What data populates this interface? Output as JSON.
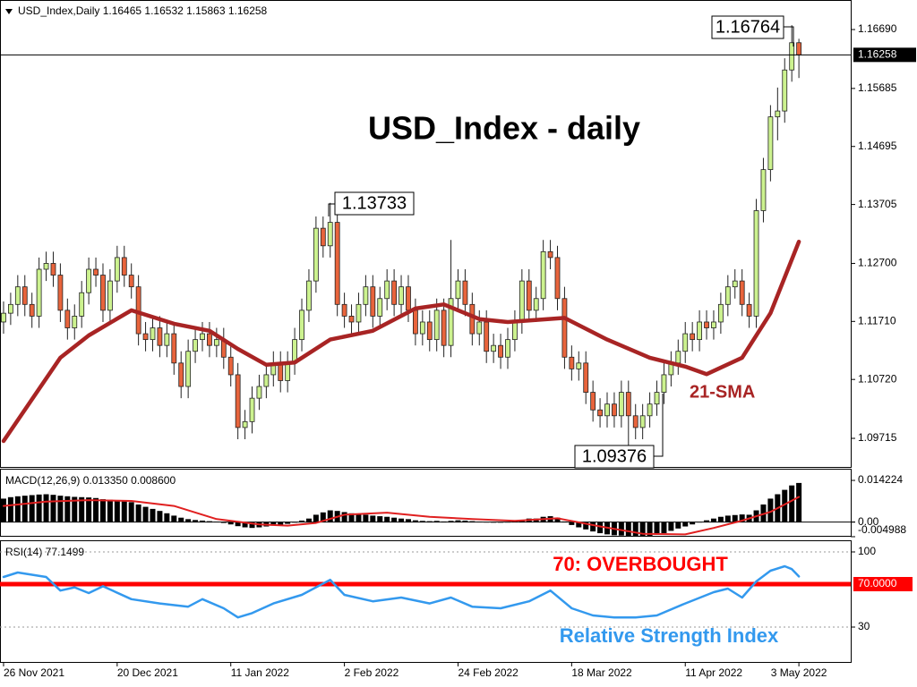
{
  "chart_data": [
    {
      "type": "candlestick",
      "subtitle": "USD_Index,Daily  1.16465 1.16532 1.15863 1.16258",
      "title": "USD_Index - daily",
      "color_up": "#ccf28f",
      "color_down": "#e8643c",
      "open": [
        1.117,
        1.1185,
        1.12,
        1.123,
        1.12,
        1.118,
        1.126,
        1.127,
        1.125,
        1.119,
        1.116,
        1.118,
        1.122,
        1.126,
        1.125,
        1.119,
        1.124,
        1.128,
        1.125,
        1.123,
        1.115,
        1.114,
        1.116,
        1.113,
        1.115,
        1.11,
        1.106,
        1.112,
        1.114,
        1.115,
        1.113,
        1.114,
        1.111,
        1.108,
        1.099,
        1.1,
        1.104,
        1.106,
        1.108,
        1.11,
        1.107,
        1.11,
        1.114,
        1.119,
        1.124,
        1.133,
        1.13,
        1.134,
        1.12,
        1.118,
        1.117,
        1.12,
        1.123,
        1.118,
        1.121,
        1.124,
        1.12,
        1.123,
        1.119,
        1.115,
        1.117,
        1.114,
        1.119,
        1.113,
        1.121,
        1.124,
        1.12,
        1.115,
        1.117,
        1.112,
        1.113,
        1.111,
        1.114,
        1.117,
        1.124,
        1.119,
        1.121,
        1.129,
        1.128,
        1.121,
        1.111,
        1.109,
        1.11,
        1.105,
        1.102,
        1.101,
        1.103,
        1.101,
        1.105,
        1.101,
        1.099,
        1.101,
        1.103,
        1.105,
        1.108,
        1.11,
        1.112,
        1.115,
        1.114,
        1.117,
        1.116,
        1.117,
        1.12,
        1.123,
        1.124,
        1.12,
        1.118,
        1.136,
        1.143,
        1.152,
        1.153,
        1.16,
        1.16465
      ],
      "high": [
        1.1205,
        1.122,
        1.125,
        1.125,
        1.122,
        1.128,
        1.129,
        1.129,
        1.127,
        1.121,
        1.12,
        1.124,
        1.128,
        1.128,
        1.127,
        1.126,
        1.13,
        1.13,
        1.127,
        1.125,
        1.117,
        1.118,
        1.118,
        1.117,
        1.117,
        1.112,
        1.114,
        1.116,
        1.117,
        1.117,
        1.116,
        1.116,
        1.113,
        1.11,
        1.102,
        1.106,
        1.108,
        1.11,
        1.112,
        1.112,
        1.112,
        1.116,
        1.121,
        1.126,
        1.135,
        1.135,
        1.13733,
        1.136,
        1.122,
        1.12,
        1.122,
        1.125,
        1.125,
        1.123,
        1.126,
        1.126,
        1.125,
        1.125,
        1.121,
        1.119,
        1.119,
        1.121,
        1.121,
        1.131,
        1.126,
        1.126,
        1.122,
        1.119,
        1.119,
        1.115,
        1.115,
        1.116,
        1.119,
        1.126,
        1.126,
        1.123,
        1.131,
        1.131,
        1.13,
        1.123,
        1.113,
        1.112,
        1.112,
        1.107,
        1.104,
        1.105,
        1.105,
        1.107,
        1.107,
        1.103,
        1.103,
        1.105,
        1.107,
        1.11,
        1.112,
        1.114,
        1.117,
        1.117,
        1.119,
        1.119,
        1.119,
        1.122,
        1.125,
        1.126,
        1.126,
        1.122,
        1.138,
        1.145,
        1.154,
        1.157,
        1.162,
        1.16764,
        1.16532
      ],
      "low": [
        1.115,
        1.1165,
        1.118,
        1.118,
        1.116,
        1.116,
        1.124,
        1.123,
        1.117,
        1.114,
        1.114,
        1.116,
        1.12,
        1.123,
        1.117,
        1.117,
        1.122,
        1.123,
        1.121,
        1.113,
        1.112,
        1.112,
        1.111,
        1.111,
        1.108,
        1.104,
        1.104,
        1.11,
        1.112,
        1.111,
        1.111,
        1.109,
        1.106,
        1.097,
        1.097,
        1.098,
        1.102,
        1.104,
        1.106,
        1.105,
        1.105,
        1.108,
        1.112,
        1.117,
        1.122,
        1.128,
        1.128,
        1.118,
        1.116,
        1.115,
        1.115,
        1.118,
        1.116,
        1.116,
        1.119,
        1.118,
        1.118,
        1.117,
        1.113,
        1.113,
        1.112,
        1.112,
        1.111,
        1.111,
        1.119,
        1.118,
        1.113,
        1.113,
        1.11,
        1.11,
        1.109,
        1.109,
        1.112,
        1.115,
        1.117,
        1.117,
        1.119,
        1.126,
        1.119,
        1.109,
        1.107,
        1.107,
        1.103,
        1.1,
        1.099,
        1.099,
        1.099,
        1.099,
        1.09376,
        1.097,
        1.097,
        1.099,
        1.101,
        1.103,
        1.106,
        1.108,
        1.11,
        1.112,
        1.112,
        1.114,
        1.114,
        1.115,
        1.118,
        1.121,
        1.118,
        1.116,
        1.116,
        1.134,
        1.141,
        1.148,
        1.151,
        1.158,
        1.15863
      ],
      "close": [
        1.1185,
        1.12,
        1.123,
        1.12,
        1.118,
        1.126,
        1.127,
        1.125,
        1.119,
        1.116,
        1.118,
        1.122,
        1.126,
        1.125,
        1.119,
        1.124,
        1.128,
        1.125,
        1.123,
        1.115,
        1.114,
        1.116,
        1.113,
        1.115,
        1.11,
        1.106,
        1.112,
        1.114,
        1.115,
        1.113,
        1.114,
        1.111,
        1.108,
        1.099,
        1.1,
        1.104,
        1.106,
        1.108,
        1.11,
        1.107,
        1.11,
        1.114,
        1.119,
        1.124,
        1.133,
        1.13,
        1.134,
        1.12,
        1.118,
        1.117,
        1.12,
        1.123,
        1.118,
        1.121,
        1.124,
        1.12,
        1.123,
        1.119,
        1.115,
        1.117,
        1.114,
        1.119,
        1.113,
        1.121,
        1.124,
        1.12,
        1.115,
        1.117,
        1.112,
        1.113,
        1.111,
        1.114,
        1.117,
        1.124,
        1.119,
        1.121,
        1.129,
        1.128,
        1.121,
        1.111,
        1.109,
        1.11,
        1.105,
        1.102,
        1.101,
        1.103,
        1.101,
        1.105,
        1.101,
        1.099,
        1.101,
        1.103,
        1.105,
        1.108,
        1.11,
        1.112,
        1.115,
        1.114,
        1.117,
        1.116,
        1.117,
        1.12,
        1.123,
        1.124,
        1.12,
        1.118,
        1.136,
        1.143,
        1.152,
        1.153,
        1.16,
        1.16465,
        1.16258
      ],
      "sma": {
        "name": "21-SMA",
        "color": "#a82424",
        "x": [
          0,
          8,
          12,
          18,
          24,
          29,
          33,
          37,
          41,
          46,
          52,
          58,
          62,
          67,
          71,
          79,
          85,
          91,
          96,
          99,
          104,
          108,
          112
        ],
        "values": [
          1.0967,
          1.1109,
          1.1147,
          1.119,
          1.1167,
          1.1155,
          1.1124,
          1.1097,
          1.1101,
          1.114,
          1.1155,
          1.1193,
          1.12,
          1.1175,
          1.117,
          1.1177,
          1.114,
          1.1109,
          1.1094,
          1.1081,
          1.1109,
          1.1185,
          1.1307
        ]
      },
      "current_price": 1.16258,
      "annotations": [
        "1.16764",
        "1.13733",
        "1.09376"
      ],
      "xlim": [
        -0.5,
        119.3
      ],
      "ylim": [
        1.09227,
        1.17194
      ],
      "yticks": [
        {
          "value": 1.1669,
          "label": "1.16690"
        },
        1.15685,
        1.14695,
        1.13705,
        {
          "value": 1.127,
          "label": "1.12700"
        },
        {
          "value": 1.1171,
          "label": "1.11710"
        },
        {
          "value": 1.1072,
          "label": "1.10720"
        },
        1.09715
      ]
    },
    {
      "type": "macd",
      "title": "MACD(12,26,9) 0.013350 0.008600",
      "histogram": {
        "color": "#000000",
        "values": [
          0.008,
          0.0085,
          0.0088,
          0.009,
          0.0092,
          0.0094,
          0.0095,
          0.0093,
          0.009,
          0.0088,
          0.0086,
          0.0085,
          0.0084,
          0.0082,
          0.0078,
          0.0076,
          0.0075,
          0.0072,
          0.0068,
          0.006,
          0.0052,
          0.0045,
          0.0038,
          0.003,
          0.0022,
          0.0015,
          0.001,
          0.0007,
          0.0005,
          0.0003,
          0.0001,
          -0.0003,
          -0.0008,
          -0.0014,
          -0.0018,
          -0.002,
          -0.0018,
          -0.0015,
          -0.0012,
          -0.0009,
          -0.0006,
          -0.0002,
          0.0005,
          0.0012,
          0.0025,
          0.0033,
          0.004,
          0.0038,
          0.0034,
          0.003,
          0.0027,
          0.0025,
          0.0022,
          0.002,
          0.0018,
          0.0015,
          0.0012,
          0.001,
          0.0006,
          0.0004,
          0.0003,
          0.0004,
          0.0002,
          0.0004,
          0.0006,
          0.0005,
          0.0003,
          0.0001,
          -0.0001,
          -0.0002,
          -0.0002,
          -0.0001,
          0.0002,
          0.0008,
          0.0012,
          0.0012,
          0.0018,
          0.002,
          0.0015,
          0.0002,
          -0.001,
          -0.0018,
          -0.0025,
          -0.0032,
          -0.0038,
          -0.0042,
          -0.0045,
          -0.0046,
          -0.0048,
          -0.005,
          -0.0049,
          -0.0047,
          -0.0043,
          -0.0038,
          -0.003,
          -0.0022,
          -0.0015,
          -0.0008,
          0.0,
          0.0006,
          0.0012,
          0.0018,
          0.0022,
          0.0024,
          0.0026,
          0.0025,
          0.004,
          0.006,
          0.008,
          0.0095,
          0.011,
          0.0125,
          0.01335
        ]
      },
      "signal": {
        "color": "#e02020",
        "x": [
          0,
          6,
          12,
          18,
          24,
          30,
          36,
          40,
          44,
          48,
          54,
          60,
          66,
          72,
          78,
          84,
          90,
          96,
          100,
          104,
          108,
          112
        ],
        "values": [
          0.0055,
          0.007,
          0.0075,
          0.0072,
          0.0055,
          0.001,
          -0.0008,
          -0.0012,
          -0.0003,
          0.0025,
          0.0032,
          0.0018,
          0.001,
          0.0004,
          0.0013,
          -0.0015,
          -0.004,
          -0.0042,
          -0.002,
          0.0005,
          0.0035,
          0.0086
        ]
      },
      "xlim": [
        -0.5,
        119.3
      ],
      "ylim": [
        -0.005,
        0.0179
      ],
      "yticks": [
        0.014224,
        {
          "value": 0,
          "label": "0.00"
        },
        -0.004988
      ]
    },
    {
      "type": "rsi",
      "title": "RSI(14) 77.1499",
      "color": "#3399ee",
      "x": [
        0,
        2,
        6,
        8,
        10,
        12,
        14,
        18,
        22,
        26,
        28,
        31,
        33,
        35,
        38,
        42,
        46,
        48,
        52,
        56,
        60,
        63,
        66,
        70,
        74,
        77,
        80,
        83,
        86,
        89,
        92,
        96,
        100,
        102,
        104,
        106,
        108,
        110,
        111,
        112
      ],
      "values": [
        76.7,
        80.8,
        76.7,
        64,
        67,
        61.7,
        68,
        56,
        52,
        49,
        56,
        47.5,
        39,
        43,
        52,
        60,
        74,
        60,
        54,
        57.5,
        52,
        57.5,
        49,
        47.5,
        54,
        64,
        47.5,
        40.8,
        39,
        39,
        40.8,
        52,
        62.5,
        65.8,
        57.5,
        72.5,
        82.5,
        86.7,
        84,
        77.1499
      ],
      "level": {
        "value": 70,
        "label": "70.0000",
        "color": "#ff0000"
      },
      "annotations": [
        "70: OVERBOUGHT",
        "Relative Strength Index"
      ],
      "grid": true,
      "xlim": [
        -0.5,
        119.3
      ],
      "ylim": [
        -2.5,
        110
      ],
      "yticks": [
        100,
        30
      ],
      "xticks": [
        {
          "value": 0,
          "label": "26 Nov 2021"
        },
        {
          "value": 16,
          "label": "20 Dec 2021"
        },
        {
          "value": 32,
          "label": "11 Jan 2022"
        },
        {
          "value": 48,
          "label": "2 Feb 2022"
        },
        {
          "value": 64,
          "label": "24 Feb 2022"
        },
        {
          "value": 80,
          "label": "18 Mar 2022"
        },
        {
          "value": 96,
          "label": "11 Apr 2022"
        },
        {
          "value": 112,
          "label": "3 May 2022"
        }
      ]
    }
  ]
}
